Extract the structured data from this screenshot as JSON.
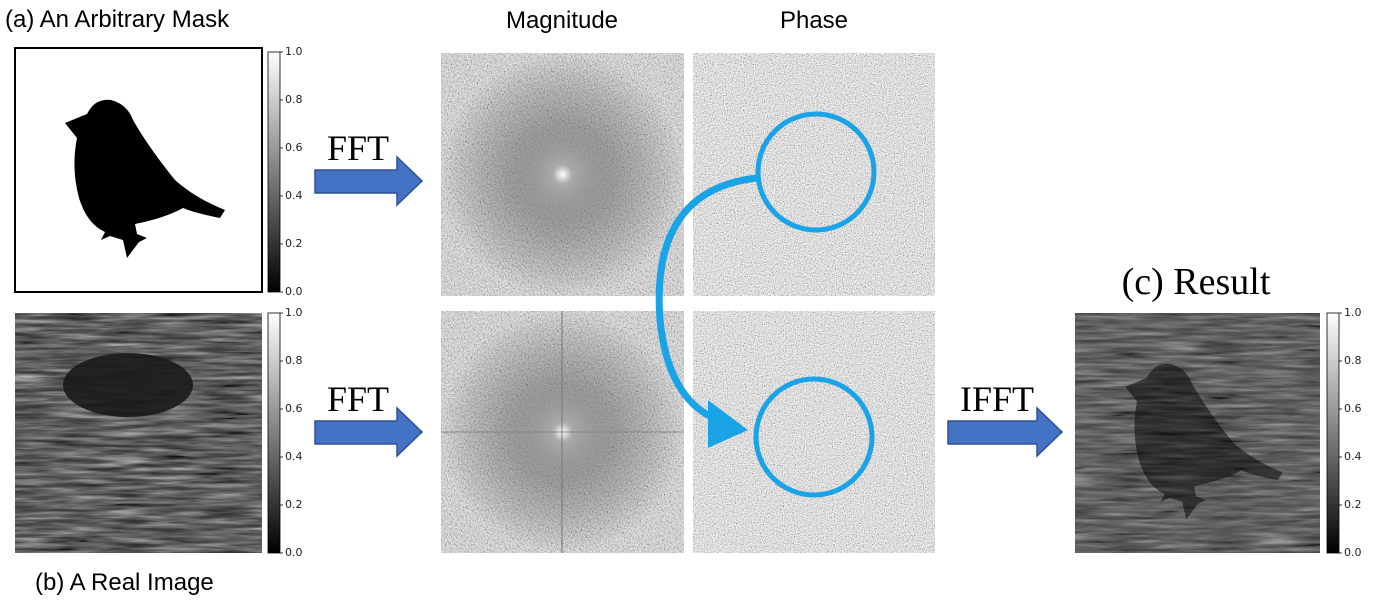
{
  "labels": {
    "mask": "(a) An Arbitrary Mask",
    "real": "(b) A Real Image",
    "result": "(c) Result",
    "magnitude": "Magnitude",
    "phase": "Phase"
  },
  "arrows": [
    "FFT",
    "FFT",
    "IFFT"
  ],
  "colorbar_ticks": [
    "0.0",
    "0.2",
    "0.4",
    "0.6",
    "0.8",
    "1.0"
  ]
}
